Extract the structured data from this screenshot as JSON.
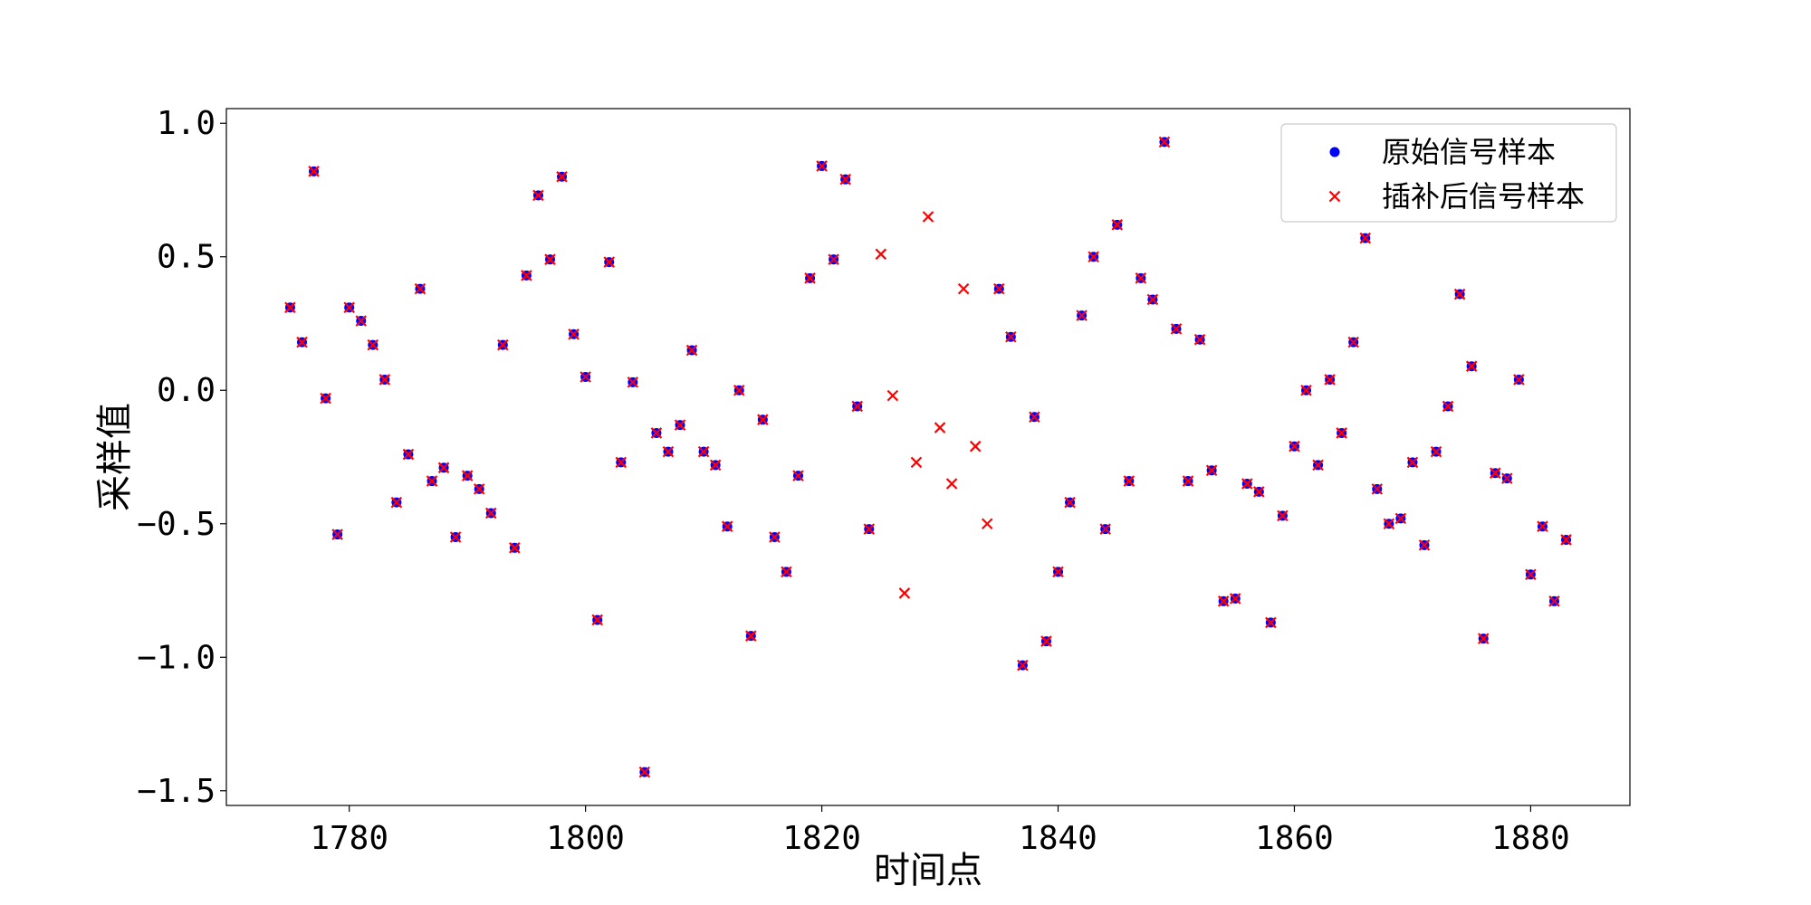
{
  "chart_data": {
    "type": "scatter",
    "title": "",
    "xlabel": "时间点",
    "ylabel": "采样值",
    "xlim": [
      1769.6,
      1888.4
    ],
    "ylim": [
      -1.555,
      1.055
    ],
    "xticks": [
      1780,
      1800,
      1820,
      1840,
      1860,
      1880
    ],
    "yticks": [
      1.0,
      0.5,
      0.0,
      -0.5,
      -1.0,
      -1.5
    ],
    "ytick_labels": [
      "1.0",
      "0.5",
      "0.0",
      "−0.5",
      "−1.0",
      "−1.5"
    ],
    "grid": false,
    "legend_position": "upper right",
    "series": [
      {
        "name": "原始信号样本",
        "marker": "circle",
        "color": "#0000ff",
        "x": [
          1775,
          1776,
          1777,
          1778,
          1779,
          1780,
          1781,
          1782,
          1783,
          1784,
          1785,
          1786,
          1787,
          1788,
          1789,
          1790,
          1791,
          1792,
          1793,
          1794,
          1795,
          1796,
          1797,
          1798,
          1799,
          1800,
          1801,
          1802,
          1803,
          1804,
          1805,
          1806,
          1807,
          1808,
          1809,
          1810,
          1811,
          1812,
          1813,
          1814,
          1815,
          1816,
          1817,
          1818,
          1819,
          1820,
          1821,
          1822,
          1823,
          1824,
          1835,
          1836,
          1837,
          1838,
          1839,
          1840,
          1841,
          1842,
          1843,
          1844,
          1845,
          1846,
          1847,
          1848,
          1849,
          1850,
          1851,
          1852,
          1853,
          1854,
          1855,
          1856,
          1857,
          1858,
          1859,
          1860,
          1861,
          1862,
          1863,
          1864,
          1865,
          1866,
          1867,
          1868,
          1869,
          1870,
          1871,
          1872,
          1873,
          1874,
          1875,
          1876,
          1877,
          1878,
          1879,
          1880,
          1881,
          1882,
          1883
        ],
        "y": [
          0.31,
          0.18,
          0.82,
          -0.03,
          -0.54,
          0.31,
          0.26,
          0.17,
          0.04,
          -0.42,
          -0.24,
          0.38,
          -0.34,
          -0.29,
          -0.55,
          -0.32,
          -0.37,
          -0.46,
          0.17,
          -0.59,
          0.43,
          0.73,
          0.49,
          0.8,
          0.21,
          0.05,
          -0.86,
          0.48,
          -0.27,
          0.03,
          -1.43,
          -0.16,
          -0.23,
          -0.13,
          0.15,
          -0.23,
          -0.28,
          -0.51,
          0.0,
          -0.92,
          -0.11,
          -0.55,
          -0.68,
          -0.32,
          0.42,
          0.84,
          0.49,
          0.79,
          -0.06,
          -0.52,
          0.38,
          0.2,
          -1.03,
          -0.1,
          -0.94,
          -0.68,
          -0.42,
          0.28,
          0.5,
          -0.52,
          0.62,
          -0.34,
          0.42,
          0.34,
          0.93,
          0.23,
          -0.34,
          0.19,
          -0.3,
          -0.79,
          -0.78,
          -0.35,
          -0.38,
          -0.87,
          -0.47,
          -0.21,
          0.0,
          -0.28,
          0.04,
          -0.16,
          0.18,
          0.57,
          -0.37,
          -0.5,
          -0.48,
          -0.27,
          -0.58,
          -0.23,
          -0.06,
          0.36,
          0.09,
          -0.93,
          -0.31,
          -0.33,
          0.04,
          -0.69,
          -0.51,
          -0.79,
          -0.56
        ]
      },
      {
        "name": "插补后信号样本",
        "marker": "x",
        "color": "#ff0000",
        "x": [
          1775,
          1776,
          1777,
          1778,
          1779,
          1780,
          1781,
          1782,
          1783,
          1784,
          1785,
          1786,
          1787,
          1788,
          1789,
          1790,
          1791,
          1792,
          1793,
          1794,
          1795,
          1796,
          1797,
          1798,
          1799,
          1800,
          1801,
          1802,
          1803,
          1804,
          1805,
          1806,
          1807,
          1808,
          1809,
          1810,
          1811,
          1812,
          1813,
          1814,
          1815,
          1816,
          1817,
          1818,
          1819,
          1820,
          1821,
          1822,
          1823,
          1824,
          1825,
          1826,
          1827,
          1828,
          1829,
          1830,
          1831,
          1832,
          1833,
          1834,
          1835,
          1836,
          1837,
          1838,
          1839,
          1840,
          1841,
          1842,
          1843,
          1844,
          1845,
          1846,
          1847,
          1848,
          1849,
          1850,
          1851,
          1852,
          1853,
          1854,
          1855,
          1856,
          1857,
          1858,
          1859,
          1860,
          1861,
          1862,
          1863,
          1864,
          1865,
          1866,
          1867,
          1868,
          1869,
          1870,
          1871,
          1872,
          1873,
          1874,
          1875,
          1876,
          1877,
          1878,
          1879,
          1880,
          1881,
          1882,
          1883
        ],
        "y": [
          0.31,
          0.18,
          0.82,
          -0.03,
          -0.54,
          0.31,
          0.26,
          0.17,
          0.04,
          -0.42,
          -0.24,
          0.38,
          -0.34,
          -0.29,
          -0.55,
          -0.32,
          -0.37,
          -0.46,
          0.17,
          -0.59,
          0.43,
          0.73,
          0.49,
          0.8,
          0.21,
          0.05,
          -0.86,
          0.48,
          -0.27,
          0.03,
          -1.43,
          -0.16,
          -0.23,
          -0.13,
          0.15,
          -0.23,
          -0.28,
          -0.51,
          0.0,
          -0.92,
          -0.11,
          -0.55,
          -0.68,
          -0.32,
          0.42,
          0.84,
          0.49,
          0.79,
          -0.06,
          -0.52,
          0.51,
          -0.02,
          -0.76,
          -0.27,
          0.65,
          -0.14,
          -0.35,
          0.38,
          -0.21,
          -0.5,
          0.38,
          0.2,
          -1.03,
          -0.1,
          -0.94,
          -0.68,
          -0.42,
          0.28,
          0.5,
          -0.52,
          0.62,
          -0.34,
          0.42,
          0.34,
          0.93,
          0.23,
          -0.34,
          0.19,
          -0.3,
          -0.79,
          -0.78,
          -0.35,
          -0.38,
          -0.87,
          -0.47,
          -0.21,
          0.0,
          -0.28,
          0.04,
          -0.16,
          0.18,
          0.57,
          -0.37,
          -0.5,
          -0.48,
          -0.27,
          -0.58,
          -0.23,
          -0.06,
          0.36,
          0.09,
          -0.93,
          -0.31,
          -0.33,
          0.04,
          -0.69,
          -0.51,
          -0.79,
          -0.56
        ]
      }
    ]
  }
}
